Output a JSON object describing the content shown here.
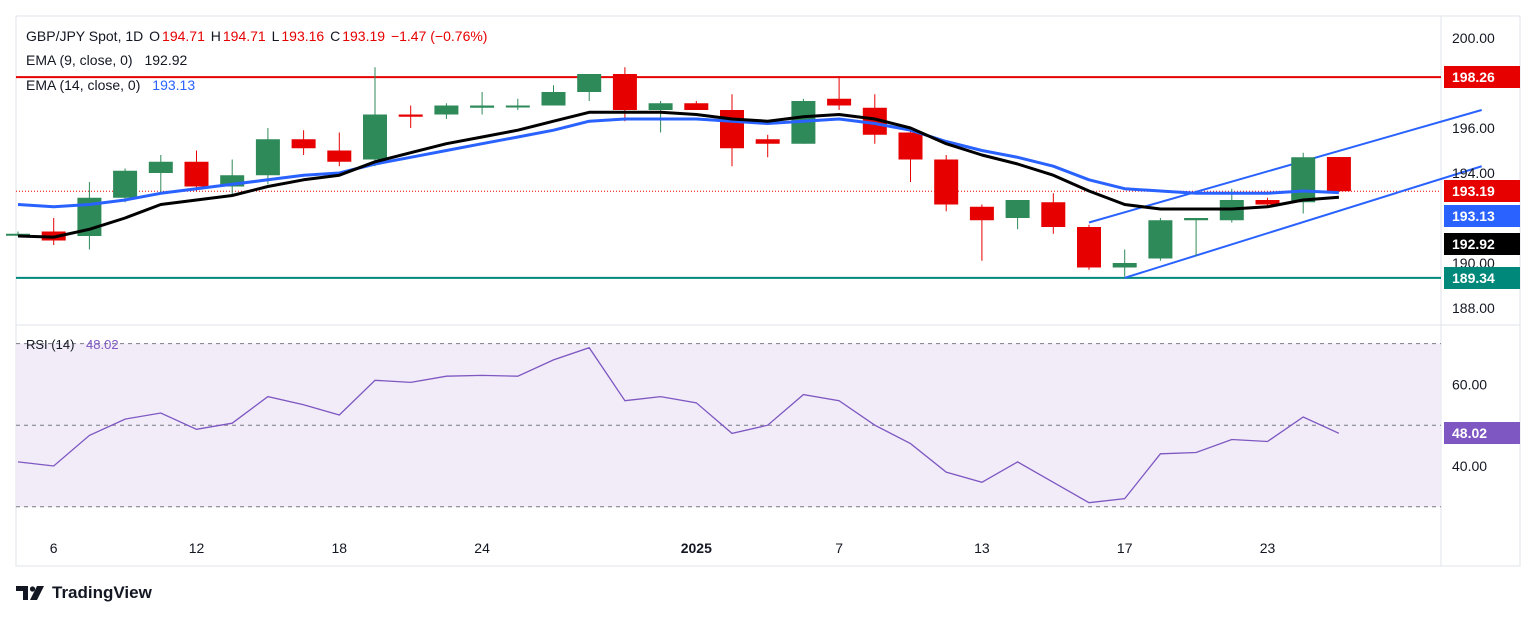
{
  "legend": {
    "symbol": "GBP/JPY Spot, 1D",
    "o_label": "O",
    "o": "194.71",
    "h_label": "H",
    "h": "194.71",
    "l_label": "L",
    "l": "193.16",
    "c_label": "C",
    "c": "193.19",
    "change": "−1.47 (−0.76%)",
    "ema9_label": "EMA (9, close, 0)",
    "ema9_value": "192.92",
    "ema14_label": "EMA (14, close, 0)",
    "ema14_value": "193.13",
    "rsi_label": "RSI (14)",
    "rsi_value": "48.02"
  },
  "badges": {
    "resistance": "198.26",
    "close": "193.19",
    "ema14": "193.13",
    "ema9": "192.92",
    "support": "189.34",
    "rsi": "48.02"
  },
  "colors": {
    "up": "#2f8a5a",
    "down": "#e60000",
    "ema9": "#000000",
    "ema14": "#2962ff",
    "channel": "#2962ff",
    "resistance": "#e60000",
    "support": "#00897b",
    "rsi": "#7e57c2",
    "rsi_band": "#ede7f6"
  },
  "brand": {
    "name": "TradingView",
    "icon": "tradingview-logo-icon"
  },
  "chart_data": {
    "type": "candlestick",
    "price_ticks": [
      "200.00",
      "196.00",
      "194.00",
      "190.00",
      "188.00"
    ],
    "rsi_ticks": [
      "60.00",
      "40.00"
    ],
    "x_ticks": [
      {
        "index": 1,
        "label": "6"
      },
      {
        "index": 5,
        "label": "12"
      },
      {
        "index": 9,
        "label": "18"
      },
      {
        "index": 13,
        "label": "24"
      },
      {
        "index": 19,
        "label": "2025"
      },
      {
        "index": 23,
        "label": "7"
      },
      {
        "index": 27,
        "label": "13"
      },
      {
        "index": 31,
        "label": "17"
      },
      {
        "index": 35,
        "label": "23"
      }
    ],
    "candles": [
      {
        "o": 191.3,
        "h": 191.4,
        "l": 191.2,
        "c": 191.3
      },
      {
        "o": 191.4,
        "h": 192.0,
        "l": 190.8,
        "c": 191.0
      },
      {
        "o": 191.2,
        "h": 193.6,
        "l": 190.6,
        "c": 192.9
      },
      {
        "o": 192.9,
        "h": 194.2,
        "l": 192.7,
        "c": 194.1
      },
      {
        "o": 194.0,
        "h": 194.8,
        "l": 193.1,
        "c": 194.5
      },
      {
        "o": 194.5,
        "h": 195.0,
        "l": 193.2,
        "c": 193.4
      },
      {
        "o": 193.4,
        "h": 194.6,
        "l": 193.0,
        "c": 193.9
      },
      {
        "o": 193.9,
        "h": 196.0,
        "l": 193.5,
        "c": 195.5
      },
      {
        "o": 195.5,
        "h": 195.9,
        "l": 194.8,
        "c": 195.1
      },
      {
        "o": 195.0,
        "h": 195.8,
        "l": 194.3,
        "c": 194.5
      },
      {
        "o": 194.6,
        "h": 198.7,
        "l": 194.3,
        "c": 196.6
      },
      {
        "o": 196.6,
        "h": 197.0,
        "l": 196.0,
        "c": 196.5
      },
      {
        "o": 196.6,
        "h": 197.1,
        "l": 196.4,
        "c": 197.0
      },
      {
        "o": 196.9,
        "h": 197.6,
        "l": 196.6,
        "c": 197.0
      },
      {
        "o": 197.0,
        "h": 197.3,
        "l": 196.8,
        "c": 197.0
      },
      {
        "o": 197.0,
        "h": 197.9,
        "l": 197.0,
        "c": 197.6
      },
      {
        "o": 197.6,
        "h": 198.4,
        "l": 197.2,
        "c": 198.4
      },
      {
        "o": 198.4,
        "h": 198.7,
        "l": 196.3,
        "c": 196.8
      },
      {
        "o": 196.8,
        "h": 197.2,
        "l": 195.8,
        "c": 197.1
      },
      {
        "o": 197.1,
        "h": 197.2,
        "l": 196.8,
        "c": 196.8
      },
      {
        "o": 196.8,
        "h": 197.5,
        "l": 194.3,
        "c": 195.1
      },
      {
        "o": 195.5,
        "h": 195.7,
        "l": 194.7,
        "c": 195.3
      },
      {
        "o": 195.3,
        "h": 197.3,
        "l": 195.3,
        "c": 197.2
      },
      {
        "o": 197.3,
        "h": 198.3,
        "l": 196.8,
        "c": 197.0
      },
      {
        "o": 196.9,
        "h": 197.5,
        "l": 195.3,
        "c": 195.7
      },
      {
        "o": 195.8,
        "h": 195.9,
        "l": 193.6,
        "c": 194.6
      },
      {
        "o": 194.6,
        "h": 194.8,
        "l": 192.3,
        "c": 192.6
      },
      {
        "o": 192.5,
        "h": 192.6,
        "l": 190.1,
        "c": 191.9
      },
      {
        "o": 192.0,
        "h": 192.8,
        "l": 191.5,
        "c": 192.8
      },
      {
        "o": 192.7,
        "h": 193.1,
        "l": 191.3,
        "c": 191.6
      },
      {
        "o": 191.6,
        "h": 191.7,
        "l": 189.7,
        "c": 189.8
      },
      {
        "o": 189.8,
        "h": 190.6,
        "l": 189.4,
        "c": 190.0
      },
      {
        "o": 190.2,
        "h": 192.0,
        "l": 190.1,
        "c": 191.9
      },
      {
        "o": 191.9,
        "h": 192.0,
        "l": 190.3,
        "c": 192.0
      },
      {
        "o": 191.9,
        "h": 193.3,
        "l": 191.8,
        "c": 192.8
      },
      {
        "o": 192.8,
        "h": 192.9,
        "l": 192.5,
        "c": 192.6
      },
      {
        "o": 192.7,
        "h": 194.9,
        "l": 192.2,
        "c": 194.7
      },
      {
        "o": 194.71,
        "h": 194.71,
        "l": 193.16,
        "c": 193.19
      }
    ],
    "ema9": [
      191.2,
      191.15,
      191.5,
      192.0,
      192.6,
      192.8,
      193.0,
      193.4,
      193.7,
      193.9,
      194.5,
      194.9,
      195.3,
      195.6,
      195.9,
      196.3,
      196.7,
      196.7,
      196.7,
      196.6,
      196.4,
      196.3,
      196.5,
      196.6,
      196.4,
      196.0,
      195.3,
      194.8,
      194.4,
      193.9,
      193.2,
      192.6,
      192.4,
      192.4,
      192.4,
      192.5,
      192.8,
      192.92
    ],
    "ema14": [
      192.6,
      192.5,
      192.6,
      192.8,
      193.1,
      193.3,
      193.5,
      193.7,
      193.9,
      194.0,
      194.4,
      194.7,
      195.0,
      195.3,
      195.6,
      195.9,
      196.3,
      196.4,
      196.4,
      196.4,
      196.3,
      196.2,
      196.3,
      196.4,
      196.2,
      195.9,
      195.4,
      195.0,
      194.7,
      194.3,
      193.7,
      193.3,
      193.2,
      193.1,
      193.1,
      193.1,
      193.2,
      193.13
    ],
    "rsi": [
      41.0,
      40.0,
      47.5,
      51.5,
      53.0,
      49.0,
      50.5,
      57.0,
      55.0,
      52.5,
      61.0,
      60.5,
      62.0,
      62.2,
      62.0,
      66.0,
      69.0,
      56.0,
      57.0,
      55.5,
      48.0,
      50.0,
      57.5,
      56.0,
      50.0,
      45.5,
      38.5,
      36.0,
      41.0,
      36.0,
      31.0,
      32.0,
      43.0,
      43.3,
      46.5,
      46.0,
      52.0,
      48.02
    ],
    "resistance": 198.26,
    "support": 189.34,
    "channel_upper": [
      {
        "i": 30,
        "v": 191.8
      },
      {
        "i": 41,
        "v": 196.8
      }
    ],
    "channel_lower": [
      {
        "i": 31,
        "v": 189.34
      },
      {
        "i": 41,
        "v": 194.3
      }
    ],
    "rsi_levels": {
      "upper": 70,
      "middle": 50,
      "lower": 30
    }
  }
}
